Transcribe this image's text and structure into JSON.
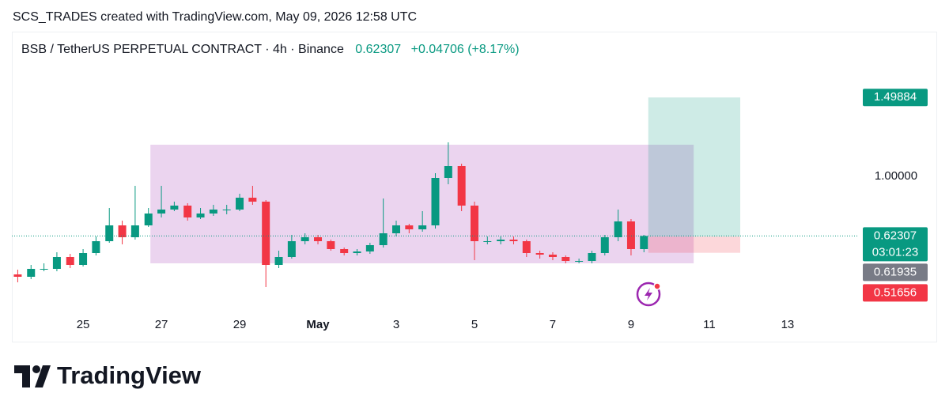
{
  "credit": "SCS_TRADES created with TradingView.com, May 09, 2026 12:58 UTC",
  "brand": "TradingView",
  "chart_data": {
    "type": "candlestick",
    "title": "BSB / TetherUS PERPETUAL CONTRACT · 4h · Binance",
    "change": "+0.04706 (+8.17%)",
    "countdown": "03:01:23",
    "x": [
      23.33,
      23.67,
      24,
      24.33,
      24.67,
      25,
      25.33,
      25.67,
      26,
      26.33,
      26.67,
      27,
      27.33,
      27.67,
      28,
      28.33,
      28.67,
      29,
      29.33,
      29.67,
      30,
      30.33,
      30.67,
      31,
      31.33,
      31.67,
      32,
      32.33,
      32.67,
      33,
      33.33,
      33.67,
      34,
      34.33,
      34.67,
      35,
      35.33,
      35.67,
      36,
      36.33,
      36.67,
      37,
      37.33,
      37.67,
      38,
      38.33,
      38.67,
      39,
      39.33
    ],
    "open": [
      0.38,
      0.365,
      0.415,
      0.415,
      0.49,
      0.44,
      0.515,
      0.59,
      0.69,
      0.615,
      0.69,
      0.765,
      0.79,
      0.815,
      0.74,
      0.765,
      0.79,
      0.79,
      0.865,
      0.84,
      0.44,
      0.49,
      0.59,
      0.615,
      0.59,
      0.54,
      0.515,
      0.525,
      0.565,
      0.64,
      0.69,
      0.665,
      0.69,
      0.99,
      1.065,
      0.815,
      0.59,
      0.59,
      0.6,
      0.59,
      0.515,
      0.505,
      0.49,
      0.465,
      0.465,
      0.515,
      0.615,
      0.715,
      0.54
    ],
    "high": [
      0.41,
      0.44,
      0.45,
      0.52,
      0.51,
      0.54,
      0.62,
      0.8,
      0.72,
      0.94,
      0.8,
      0.94,
      0.84,
      0.83,
      0.8,
      0.82,
      0.82,
      0.89,
      0.94,
      0.85,
      0.53,
      0.63,
      0.64,
      0.63,
      0.6,
      0.55,
      0.54,
      0.58,
      0.86,
      0.72,
      0.7,
      0.78,
      1.02,
      1.215,
      1.08,
      0.84,
      0.62,
      0.62,
      0.62,
      0.6,
      0.53,
      0.52,
      0.5,
      0.48,
      0.53,
      0.63,
      0.79,
      0.73,
      0.63
    ],
    "low": [
      0.33,
      0.35,
      0.4,
      0.4,
      0.42,
      0.43,
      0.5,
      0.58,
      0.57,
      0.6,
      0.68,
      0.74,
      0.78,
      0.72,
      0.73,
      0.75,
      0.76,
      0.78,
      0.82,
      0.3,
      0.42,
      0.48,
      0.57,
      0.57,
      0.53,
      0.5,
      0.5,
      0.51,
      0.55,
      0.62,
      0.64,
      0.65,
      0.67,
      0.95,
      0.78,
      0.47,
      0.57,
      0.57,
      0.57,
      0.49,
      0.48,
      0.47,
      0.45,
      0.45,
      0.45,
      0.5,
      0.59,
      0.5,
      0.52
    ],
    "close": [
      0.365,
      0.415,
      0.415,
      0.49,
      0.44,
      0.515,
      0.59,
      0.69,
      0.615,
      0.69,
      0.765,
      0.79,
      0.815,
      0.74,
      0.765,
      0.79,
      0.79,
      0.865,
      0.84,
      0.44,
      0.49,
      0.59,
      0.615,
      0.59,
      0.54,
      0.515,
      0.525,
      0.565,
      0.64,
      0.69,
      0.665,
      0.69,
      0.99,
      1.065,
      0.815,
      0.59,
      0.59,
      0.6,
      0.59,
      0.515,
      0.505,
      0.49,
      0.465,
      0.465,
      0.515,
      0.615,
      0.715,
      0.54,
      0.62307
    ],
    "up_color": "#089981",
    "down_color": "#f23645",
    "range_box": {
      "x": [
        26.72,
        40.6
      ],
      "y": [
        0.45,
        1.2
      ],
      "color": "#ce93d8"
    },
    "position": {
      "x": [
        39.44,
        41.79
      ],
      "entry": 0.61935,
      "target": 1.49884,
      "stop": 0.51656
    },
    "xlim": [
      23.18,
      44.8
    ],
    "ylim": [
      0.14,
      1.69
    ],
    "xticks": [
      25,
      27,
      29,
      {
        "value": 31,
        "label": "May"
      },
      {
        "value": 33,
        "label": "3"
      },
      {
        "value": 35,
        "label": "5"
      },
      {
        "value": 37,
        "label": "7"
      },
      {
        "value": 39,
        "label": "9"
      },
      {
        "value": 41,
        "label": "11"
      },
      {
        "value": 43,
        "label": "13"
      }
    ],
    "yticks": [
      {
        "value": 1,
        "label": "1.00000"
      }
    ],
    "grid": false
  }
}
